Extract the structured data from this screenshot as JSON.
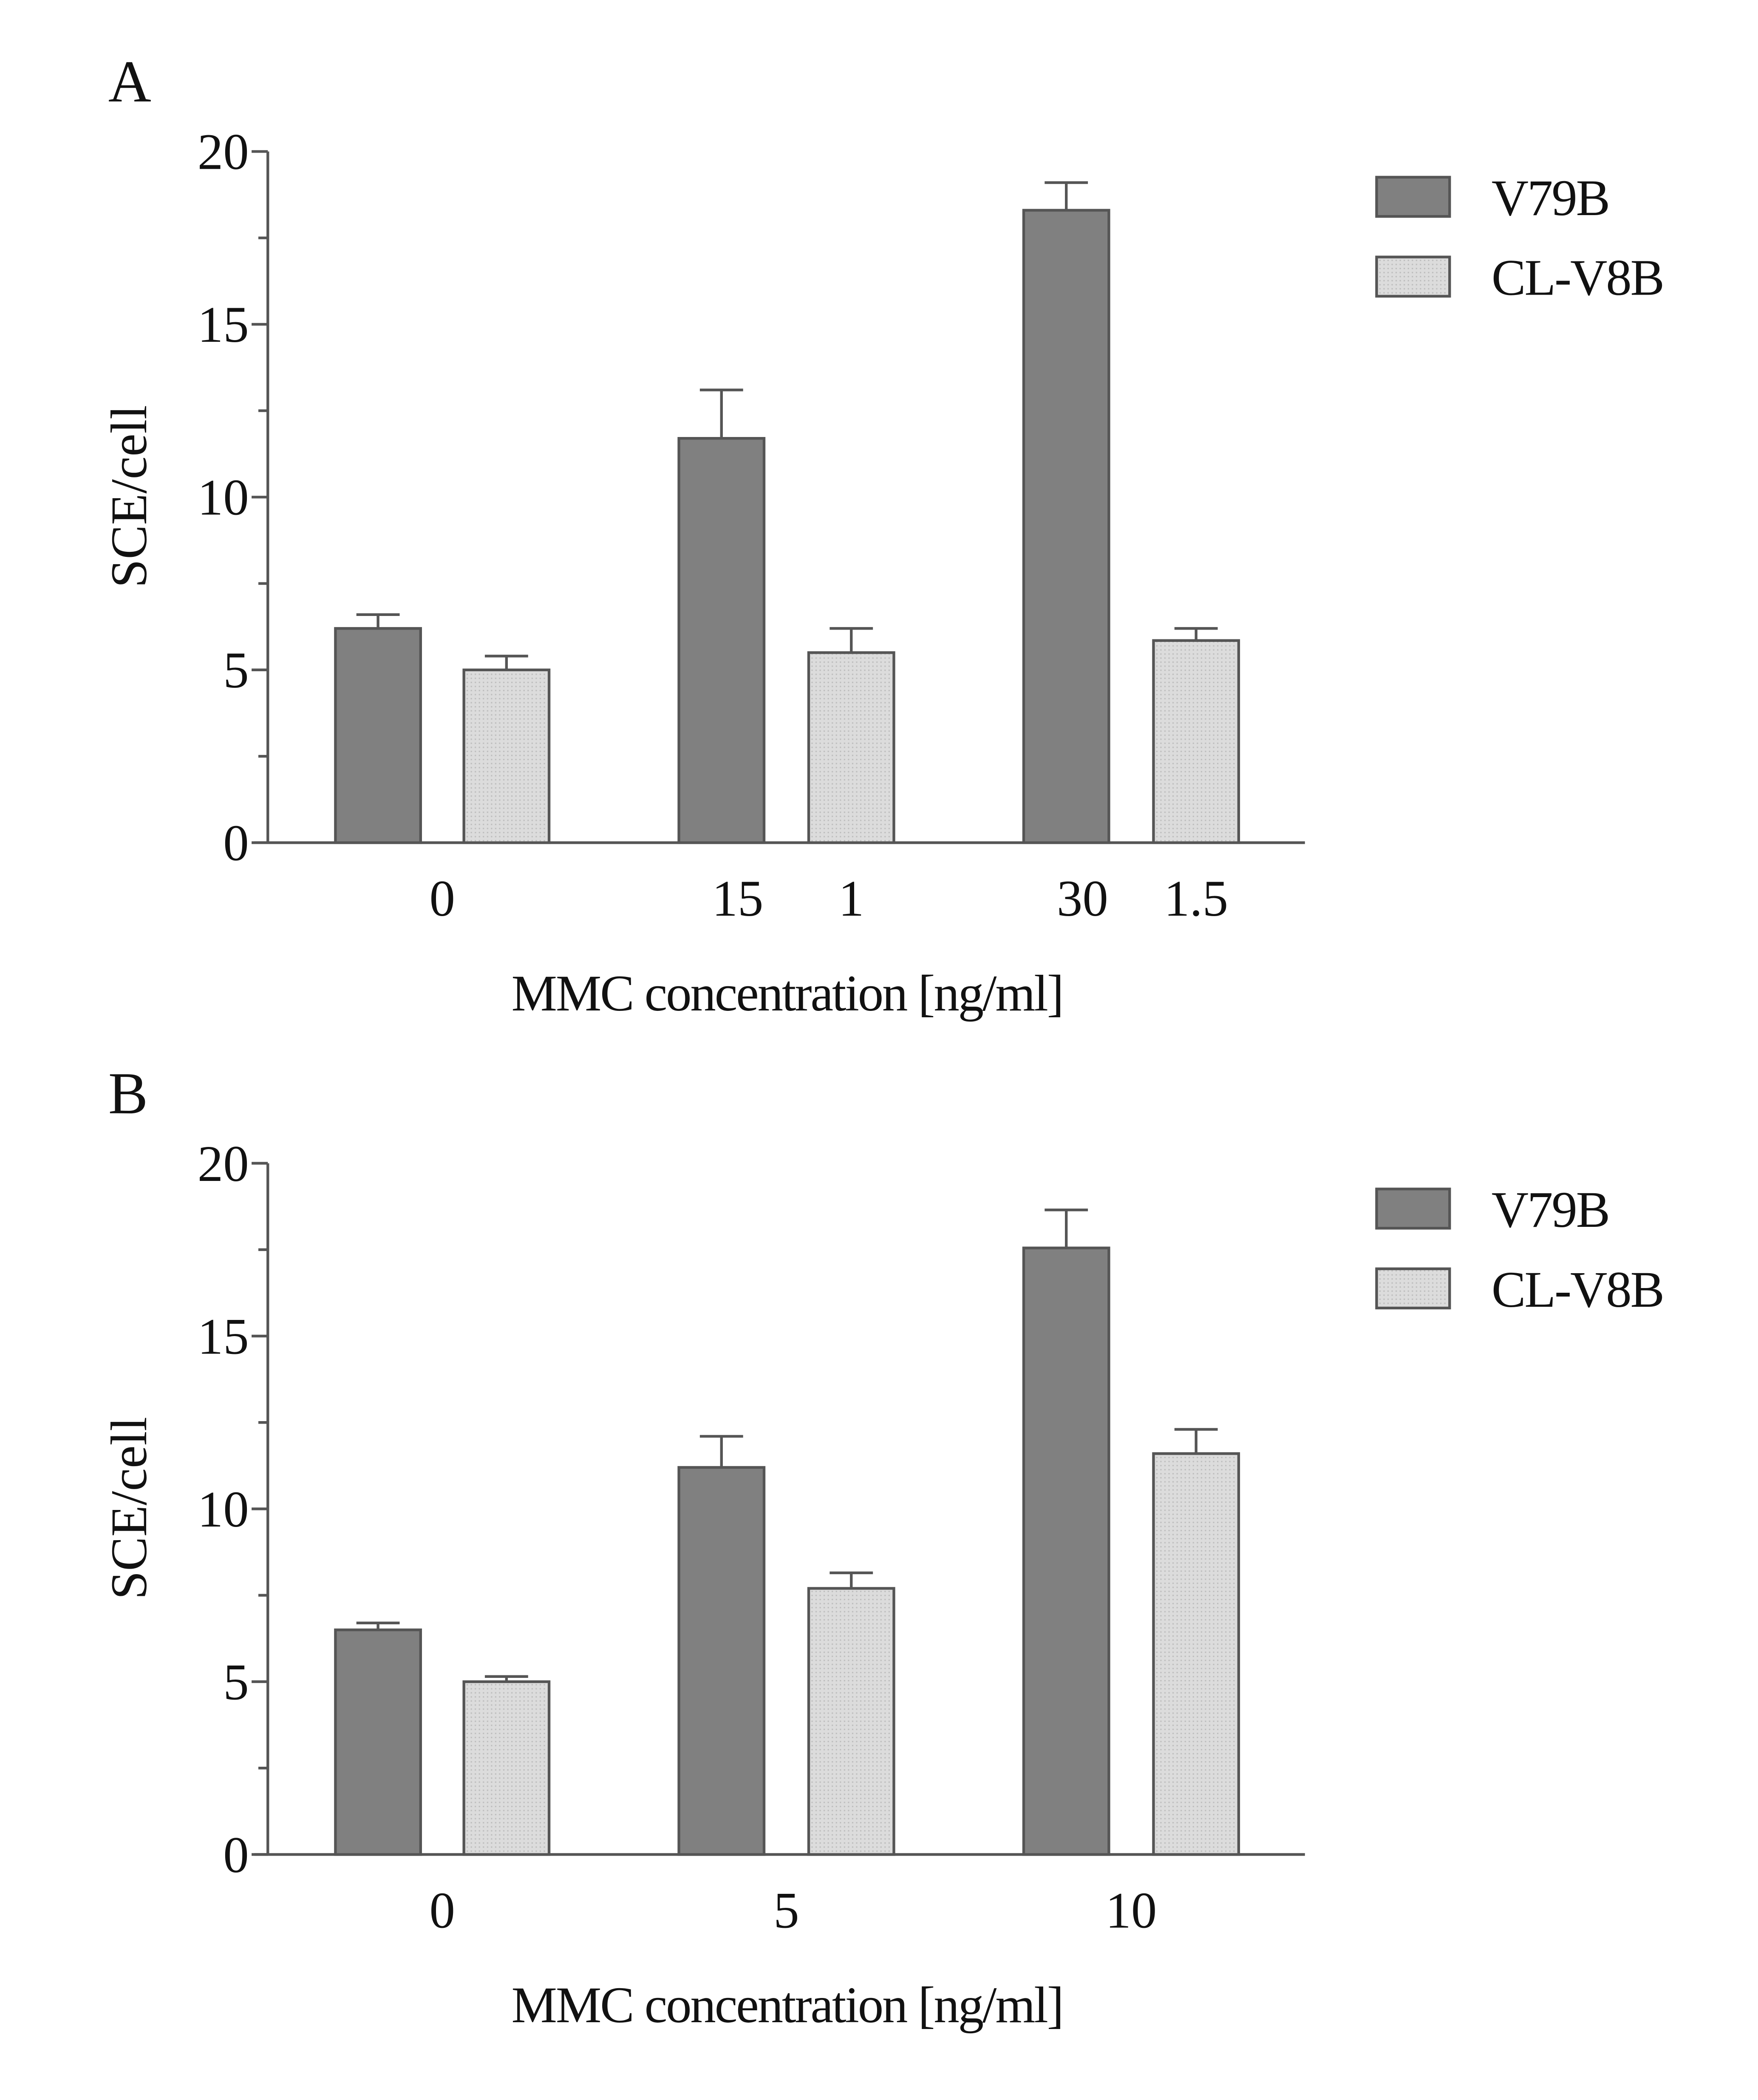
{
  "chart_data": [
    {
      "type": "bar",
      "panel_label": "A",
      "xlabel": "MMC concentration [ng/ml]",
      "ylabel": "SCE/cell",
      "ylim": [
        0,
        20
      ],
      "yticks": [
        "0",
        "5",
        "10",
        "15",
        "20"
      ],
      "group_tick_labels": [
        [
          "0"
        ],
        [
          "15",
          "1"
        ],
        [
          "30",
          "1.5"
        ]
      ],
      "legend_position": "top-right",
      "series": [
        {
          "name": "V79B",
          "color": "#808080",
          "values": [
            6.2,
            11.7,
            18.3
          ],
          "errors": [
            0.4,
            1.4,
            0.8
          ]
        },
        {
          "name": "CL-V8B",
          "color": "#d9d9d9",
          "values": [
            5.0,
            5.5,
            5.85
          ],
          "errors": [
            0.4,
            0.7,
            0.35
          ]
        }
      ]
    },
    {
      "type": "bar",
      "panel_label": "B",
      "xlabel": "MMC concentration [ng/ml]",
      "ylabel": "SCE/cell",
      "ylim": [
        0,
        20
      ],
      "yticks": [
        "0",
        "5",
        "10",
        "15",
        "20"
      ],
      "group_tick_labels": [
        [
          "0"
        ],
        [
          "5"
        ],
        [
          "10"
        ]
      ],
      "legend_position": "top-right",
      "series": [
        {
          "name": "V79B",
          "color": "#808080",
          "values": [
            6.5,
            11.2,
            17.55
          ],
          "errors": [
            0.2,
            0.9,
            1.1
          ]
        },
        {
          "name": "CL-V8B",
          "color": "#d9d9d9",
          "values": [
            5.0,
            7.7,
            11.6
          ],
          "errors": [
            0.15,
            0.45,
            0.7
          ]
        }
      ]
    }
  ]
}
